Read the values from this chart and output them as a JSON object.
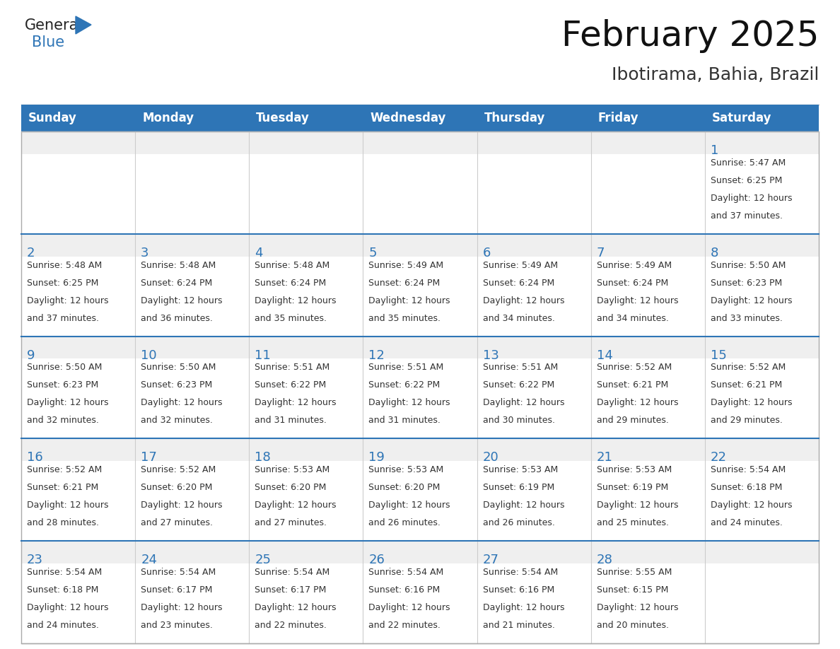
{
  "title": "February 2025",
  "subtitle": "Ibotirama, Bahia, Brazil",
  "header_bg_color": "#2E75B6",
  "header_text_color": "#FFFFFF",
  "day_names": [
    "Sunday",
    "Monday",
    "Tuesday",
    "Wednesday",
    "Thursday",
    "Friday",
    "Saturday"
  ],
  "cell_bg_color": "#FFFFFF",
  "cell_top_strip_color": "#EFEFEF",
  "cell_border_color": "#AAAAAA",
  "row_divider_color": "#2E75B6",
  "day_number_color": "#2E75B6",
  "info_text_color": "#333333",
  "title_color": "#111111",
  "subtitle_color": "#333333",
  "logo_general_color": "#222222",
  "logo_blue_color": "#2E75B6",
  "weeks": [
    [
      {
        "day": null,
        "sunrise": null,
        "sunset": null,
        "daylight": null
      },
      {
        "day": null,
        "sunrise": null,
        "sunset": null,
        "daylight": null
      },
      {
        "day": null,
        "sunrise": null,
        "sunset": null,
        "daylight": null
      },
      {
        "day": null,
        "sunrise": null,
        "sunset": null,
        "daylight": null
      },
      {
        "day": null,
        "sunrise": null,
        "sunset": null,
        "daylight": null
      },
      {
        "day": null,
        "sunrise": null,
        "sunset": null,
        "daylight": null
      },
      {
        "day": 1,
        "sunrise": "5:47 AM",
        "sunset": "6:25 PM",
        "daylight": "12 hours and 37 minutes."
      }
    ],
    [
      {
        "day": 2,
        "sunrise": "5:48 AM",
        "sunset": "6:25 PM",
        "daylight": "12 hours and 37 minutes."
      },
      {
        "day": 3,
        "sunrise": "5:48 AM",
        "sunset": "6:24 PM",
        "daylight": "12 hours and 36 minutes."
      },
      {
        "day": 4,
        "sunrise": "5:48 AM",
        "sunset": "6:24 PM",
        "daylight": "12 hours and 35 minutes."
      },
      {
        "day": 5,
        "sunrise": "5:49 AM",
        "sunset": "6:24 PM",
        "daylight": "12 hours and 35 minutes."
      },
      {
        "day": 6,
        "sunrise": "5:49 AM",
        "sunset": "6:24 PM",
        "daylight": "12 hours and 34 minutes."
      },
      {
        "day": 7,
        "sunrise": "5:49 AM",
        "sunset": "6:24 PM",
        "daylight": "12 hours and 34 minutes."
      },
      {
        "day": 8,
        "sunrise": "5:50 AM",
        "sunset": "6:23 PM",
        "daylight": "12 hours and 33 minutes."
      }
    ],
    [
      {
        "day": 9,
        "sunrise": "5:50 AM",
        "sunset": "6:23 PM",
        "daylight": "12 hours and 32 minutes."
      },
      {
        "day": 10,
        "sunrise": "5:50 AM",
        "sunset": "6:23 PM",
        "daylight": "12 hours and 32 minutes."
      },
      {
        "day": 11,
        "sunrise": "5:51 AM",
        "sunset": "6:22 PM",
        "daylight": "12 hours and 31 minutes."
      },
      {
        "day": 12,
        "sunrise": "5:51 AM",
        "sunset": "6:22 PM",
        "daylight": "12 hours and 31 minutes."
      },
      {
        "day": 13,
        "sunrise": "5:51 AM",
        "sunset": "6:22 PM",
        "daylight": "12 hours and 30 minutes."
      },
      {
        "day": 14,
        "sunrise": "5:52 AM",
        "sunset": "6:21 PM",
        "daylight": "12 hours and 29 minutes."
      },
      {
        "day": 15,
        "sunrise": "5:52 AM",
        "sunset": "6:21 PM",
        "daylight": "12 hours and 29 minutes."
      }
    ],
    [
      {
        "day": 16,
        "sunrise": "5:52 AM",
        "sunset": "6:21 PM",
        "daylight": "12 hours and 28 minutes."
      },
      {
        "day": 17,
        "sunrise": "5:52 AM",
        "sunset": "6:20 PM",
        "daylight": "12 hours and 27 minutes."
      },
      {
        "day": 18,
        "sunrise": "5:53 AM",
        "sunset": "6:20 PM",
        "daylight": "12 hours and 27 minutes."
      },
      {
        "day": 19,
        "sunrise": "5:53 AM",
        "sunset": "6:20 PM",
        "daylight": "12 hours and 26 minutes."
      },
      {
        "day": 20,
        "sunrise": "5:53 AM",
        "sunset": "6:19 PM",
        "daylight": "12 hours and 26 minutes."
      },
      {
        "day": 21,
        "sunrise": "5:53 AM",
        "sunset": "6:19 PM",
        "daylight": "12 hours and 25 minutes."
      },
      {
        "day": 22,
        "sunrise": "5:54 AM",
        "sunset": "6:18 PM",
        "daylight": "12 hours and 24 minutes."
      }
    ],
    [
      {
        "day": 23,
        "sunrise": "5:54 AM",
        "sunset": "6:18 PM",
        "daylight": "12 hours and 24 minutes."
      },
      {
        "day": 24,
        "sunrise": "5:54 AM",
        "sunset": "6:17 PM",
        "daylight": "12 hours and 23 minutes."
      },
      {
        "day": 25,
        "sunrise": "5:54 AM",
        "sunset": "6:17 PM",
        "daylight": "12 hours and 22 minutes."
      },
      {
        "day": 26,
        "sunrise": "5:54 AM",
        "sunset": "6:16 PM",
        "daylight": "12 hours and 22 minutes."
      },
      {
        "day": 27,
        "sunrise": "5:54 AM",
        "sunset": "6:16 PM",
        "daylight": "12 hours and 21 minutes."
      },
      {
        "day": 28,
        "sunrise": "5:55 AM",
        "sunset": "6:15 PM",
        "daylight": "12 hours and 20 minutes."
      },
      {
        "day": null,
        "sunrise": null,
        "sunset": null,
        "daylight": null
      }
    ]
  ]
}
